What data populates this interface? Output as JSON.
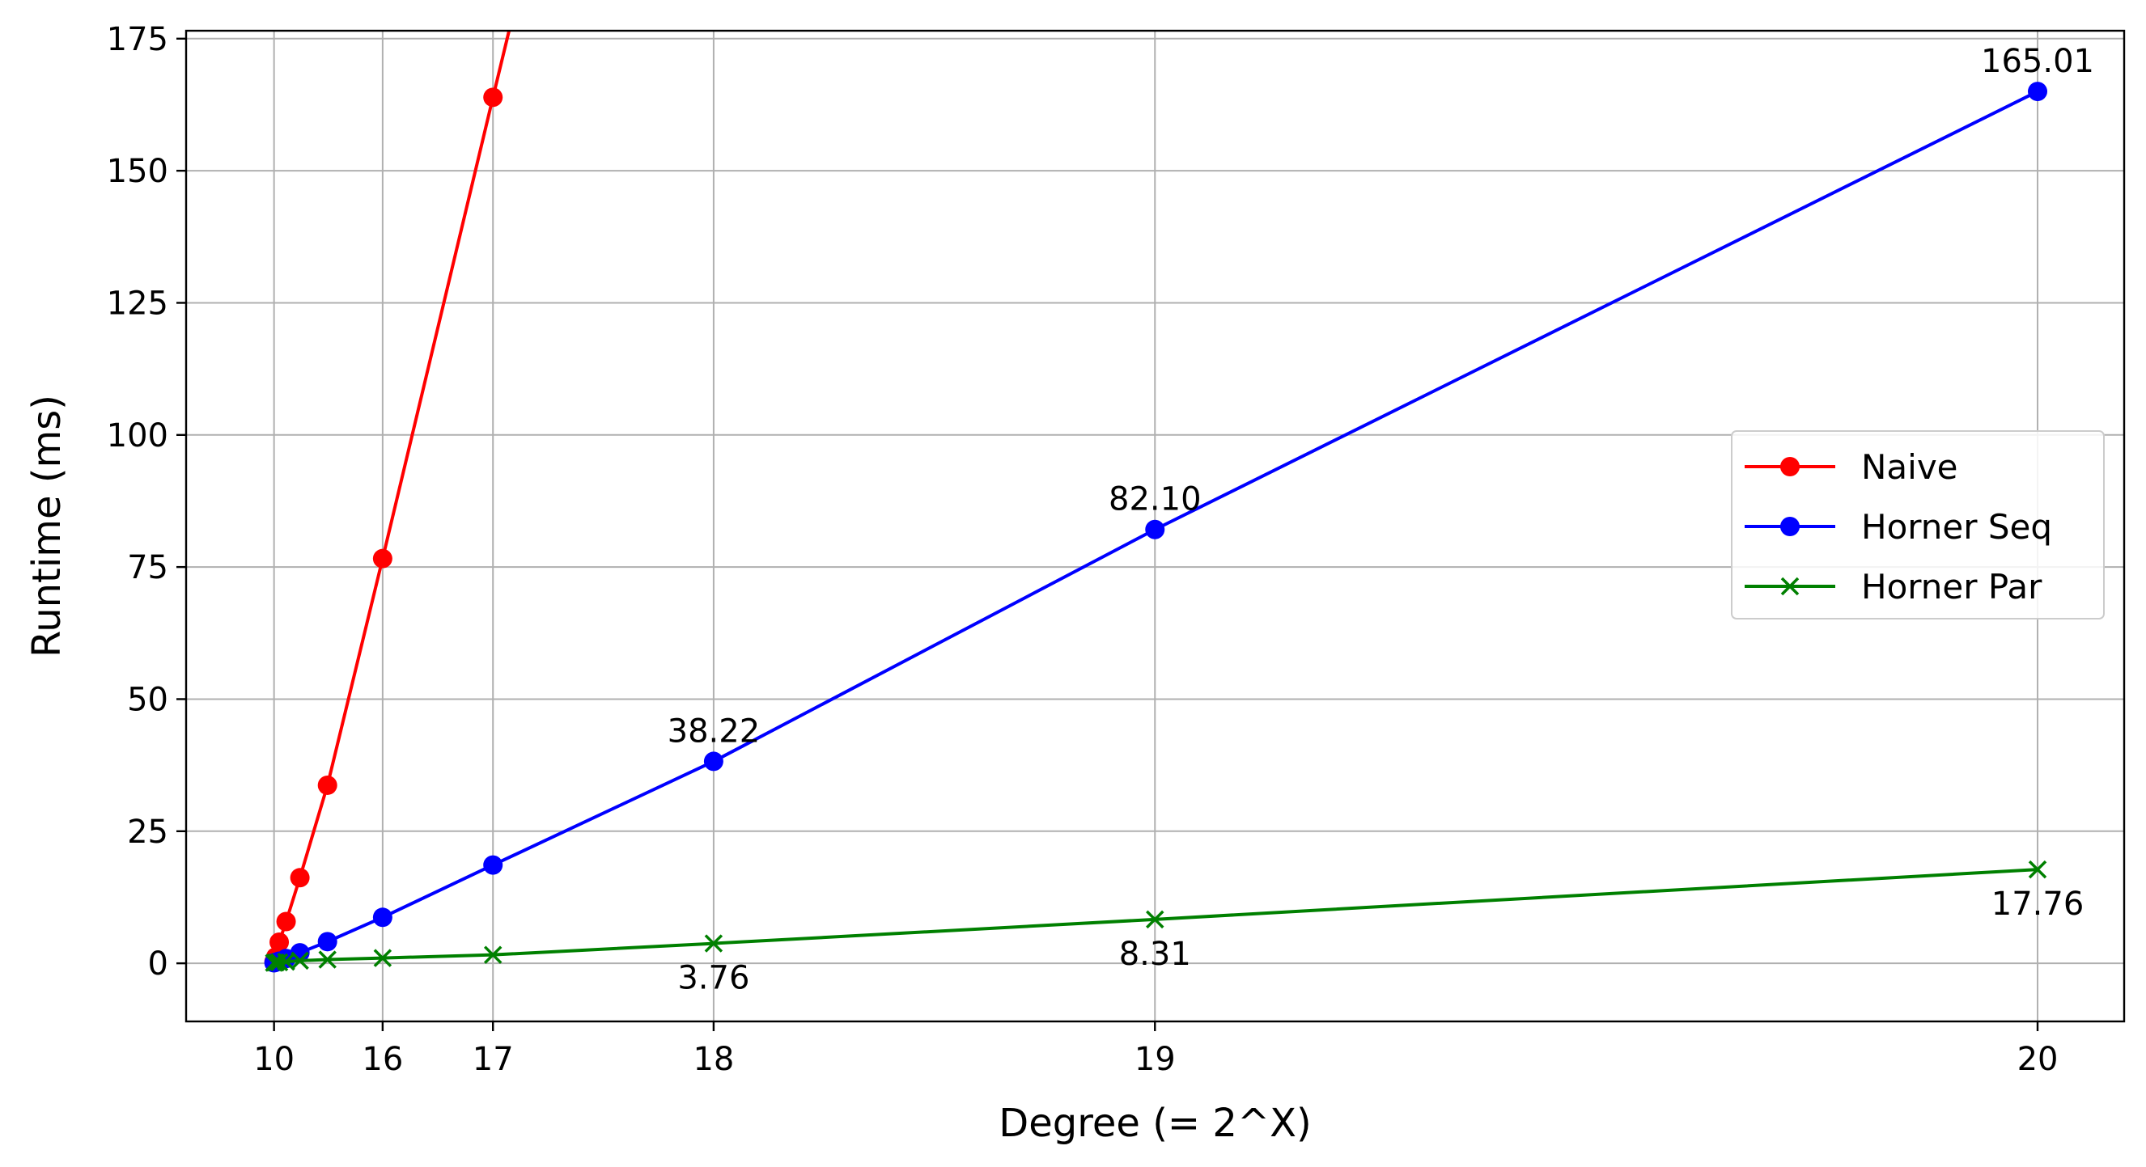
{
  "chart_data": {
    "type": "line",
    "xlabel": "Degree (= 2^X)",
    "ylabel": "Runtime (ms)",
    "x_ticks": [
      {
        "value": 1024,
        "label": "10"
      },
      {
        "value": 65536,
        "label": "16"
      },
      {
        "value": 131072,
        "label": "17"
      },
      {
        "value": 262144,
        "label": "18"
      },
      {
        "value": 524288,
        "label": "19"
      },
      {
        "value": 1048576,
        "label": "20"
      }
    ],
    "y_ticks": [
      0,
      25,
      50,
      75,
      100,
      125,
      150,
      175
    ],
    "xlim": [
      -51200,
      1100000
    ],
    "ylim": [
      -11,
      176.5
    ],
    "grid": true,
    "legend_position": "right",
    "series": [
      {
        "name": "Naive",
        "color": "#ff0000",
        "marker": "circle",
        "x": [
          1024,
          2048,
          4096,
          8192,
          16384,
          32768,
          65536,
          131072
        ],
        "y": [
          0.3,
          1.2,
          4.0,
          7.9,
          16.2,
          33.7,
          76.6,
          163.9
        ],
        "extends_beyond_top": true,
        "extension_slope": 1.318
      },
      {
        "name": "Horner Seq",
        "color": "#0000ff",
        "marker": "circle",
        "x": [
          1024,
          2048,
          4096,
          8192,
          16384,
          32768,
          65536,
          131072,
          262144,
          524288,
          1048576
        ],
        "y": [
          0.1,
          0.2,
          0.4,
          0.9,
          2.0,
          4.1,
          8.7,
          18.6,
          38.22,
          82.1,
          165.01
        ]
      },
      {
        "name": "Horner Par",
        "color": "#008000",
        "marker": "x",
        "x": [
          1024,
          2048,
          4096,
          8192,
          16384,
          32768,
          65536,
          131072,
          262144,
          524288,
          1048576
        ],
        "y": [
          0.1,
          0.15,
          0.2,
          0.3,
          0.5,
          0.7,
          1.0,
          1.6,
          3.76,
          8.31,
          17.76
        ]
      }
    ],
    "annotations": [
      {
        "series": "Horner Seq",
        "x": 262144,
        "y": 38.22,
        "text": "38.22",
        "placement": "above"
      },
      {
        "series": "Horner Seq",
        "x": 524288,
        "y": 82.1,
        "text": "82.10",
        "placement": "above"
      },
      {
        "series": "Horner Seq",
        "x": 1048576,
        "y": 165.01,
        "text": "165.01",
        "placement": "above"
      },
      {
        "series": "Horner Par",
        "x": 262144,
        "y": 3.76,
        "text": "3.76",
        "placement": "below"
      },
      {
        "series": "Horner Par",
        "x": 524288,
        "y": 8.31,
        "text": "8.31",
        "placement": "below"
      },
      {
        "series": "Horner Par",
        "x": 1048576,
        "y": 17.76,
        "text": "17.76",
        "placement": "below"
      }
    ]
  }
}
